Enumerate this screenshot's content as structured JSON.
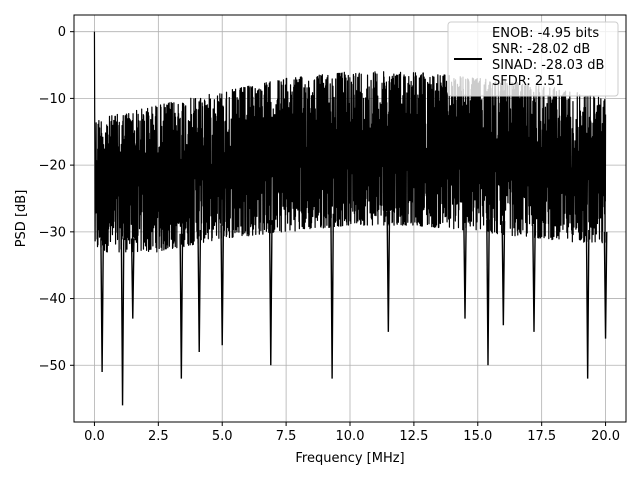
{
  "chart_data": {
    "type": "line",
    "title": "",
    "xlabel": "Frequency [MHz]",
    "ylabel": "PSD [dB]",
    "xlim": [
      -0.8,
      20.8
    ],
    "ylim": [
      -58.5,
      2.5
    ],
    "xticks": [
      0.0,
      2.5,
      5.0,
      7.5,
      10.0,
      12.5,
      15.0,
      17.5,
      20.0
    ],
    "xtick_labels": [
      "0.0",
      "2.5",
      "5.0",
      "7.5",
      "10.0",
      "12.5",
      "15.0",
      "17.5",
      "20.0"
    ],
    "yticks": [
      0,
      -10,
      -20,
      -30,
      -40,
      -50
    ],
    "ytick_labels": [
      "0",
      "−10",
      "−20",
      "−30",
      "−40",
      "−50"
    ],
    "grid": true,
    "legend_position": "top-right",
    "legend": {
      "lines": [
        "ENOB: -4.95 bits",
        "SNR: -28.02 dB",
        "SINAD: -28.03 dB",
        "SFDR: 2.51"
      ]
    },
    "series": [
      {
        "color": "#000000",
        "x_range": [
          0,
          20
        ],
        "peak": {
          "x": 0.0,
          "y": 0.0
        },
        "upper_envelope": {
          "x": [
            0.2,
            2.5,
            5,
            7.5,
            10,
            12.5,
            15,
            17.5,
            20
          ],
          "y": [
            -13,
            -11,
            -9,
            -7,
            -6,
            -6,
            -7,
            -8,
            -10
          ]
        },
        "lower_envelope": {
          "x": [
            0.2,
            2.5,
            5,
            7.5,
            10,
            12.5,
            15,
            17.5,
            20
          ],
          "y": [
            -33,
            -33,
            -31,
            -30,
            -29,
            -29,
            -30,
            -31,
            -32
          ]
        },
        "dips": [
          {
            "x": 0.3,
            "y": -51
          },
          {
            "x": 1.1,
            "y": -56
          },
          {
            "x": 1.5,
            "y": -43
          },
          {
            "x": 3.4,
            "y": -52
          },
          {
            "x": 4.1,
            "y": -48
          },
          {
            "x": 5.0,
            "y": -47
          },
          {
            "x": 6.9,
            "y": -50
          },
          {
            "x": 9.3,
            "y": -52
          },
          {
            "x": 11.5,
            "y": -45
          },
          {
            "x": 14.5,
            "y": -43
          },
          {
            "x": 15.4,
            "y": -50
          },
          {
            "x": 16.0,
            "y": -44
          },
          {
            "x": 17.2,
            "y": -45
          },
          {
            "x": 19.3,
            "y": -52
          },
          {
            "x": 20.0,
            "y": -46
          }
        ]
      }
    ]
  }
}
